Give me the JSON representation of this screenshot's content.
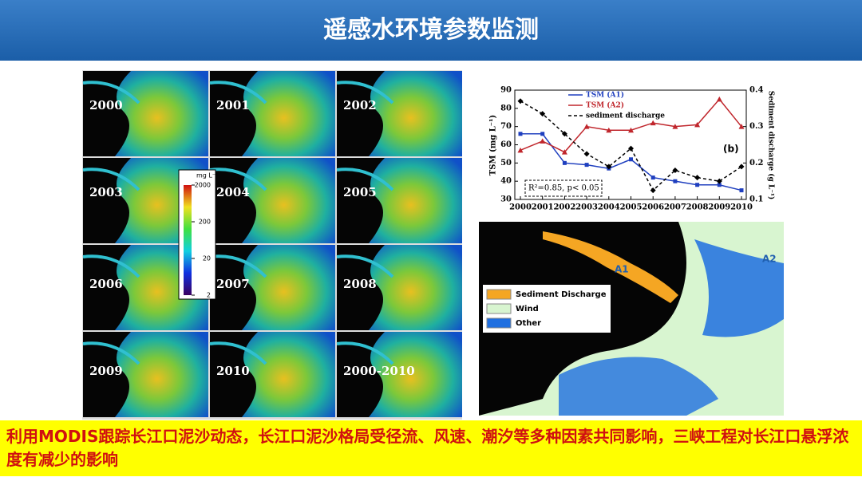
{
  "header": {
    "title": "遥感水环境参数监测"
  },
  "panels": [
    "2000",
    "2001",
    "2002",
    "2003",
    "2004",
    "2005",
    "2006",
    "2007",
    "2008",
    "2009",
    "2010",
    "2000-2010"
  ],
  "colorbar": {
    "title": "mg L⁻¹",
    "ticks": [
      2000,
      200,
      20,
      2
    ],
    "log": true
  },
  "chart_data": {
    "type": "line",
    "x": [
      2000,
      2001,
      2002,
      2003,
      2004,
      2005,
      2006,
      2007,
      2008,
      2009,
      2010
    ],
    "xlim": [
      2000,
      2010
    ],
    "xticks": [
      2000,
      2001,
      2002,
      2003,
      2004,
      2005,
      2006,
      2007,
      2008,
      2009,
      2010
    ],
    "ylim": [
      30,
      90
    ],
    "yticks": [
      30,
      40,
      50,
      60,
      70,
      80,
      90
    ],
    "y2lim": [
      0.1,
      0.4
    ],
    "y2ticks": [
      0.1,
      0.2,
      0.3,
      0.4
    ],
    "ylabel": "TSM (mg L⁻¹)",
    "y2label": "Sediment discharge (g L⁻¹)",
    "series": [
      {
        "name": "TSM (A1)",
        "color": "#1f3fbf",
        "values": [
          66,
          66,
          50,
          49,
          47,
          52,
          42,
          40,
          38,
          38,
          35
        ]
      },
      {
        "name": "TSM (A2)",
        "color": "#c0262c",
        "values": [
          57,
          62,
          56,
          70,
          68,
          68,
          72,
          70,
          71,
          85,
          70
        ]
      },
      {
        "name": "sediment discharge",
        "color": "#000000",
        "axis": "y2",
        "values": [
          0.37,
          0.335,
          0.28,
          0.225,
          0.19,
          0.24,
          0.125,
          0.18,
          0.16,
          0.15,
          0.19
        ]
      }
    ],
    "annotations": [
      "(b)",
      "R²=0.85, p< 0.05"
    ]
  },
  "map": {
    "legend": [
      {
        "name": "Sediment Discharge",
        "color": "#f5a623"
      },
      {
        "name": "Wind",
        "color": "#d8f5d0"
      },
      {
        "name": "Other",
        "color": "#1f6fe0"
      }
    ],
    "labels": [
      "A1",
      "A2"
    ]
  },
  "caption": "利用MODIS跟踪长江口泥沙动态，长江口泥沙格局受径流、风速、潮汐等多种因素共同影响，三峡工程对长江口悬浮浓度有减少的影响"
}
